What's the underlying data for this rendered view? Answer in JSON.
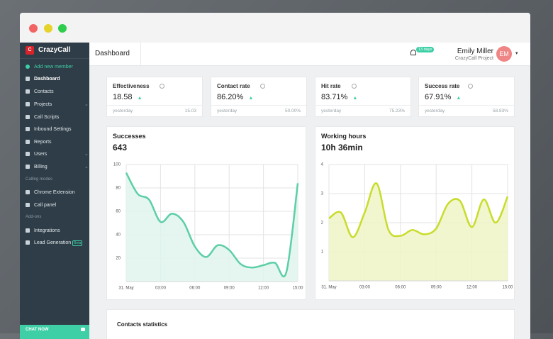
{
  "sidebar": {
    "logo_icon": "C",
    "brand": "CrazyCall",
    "add_member": "Add new member",
    "main": [
      "Dashboard",
      "Contacts",
      "Projects",
      "Call Scripts",
      "Inbound Settings",
      "Reports",
      "Users",
      "Billing"
    ],
    "calling_modes": {
      "heading": "Calling modes",
      "items": [
        "Chrome Extension",
        "Call panel"
      ]
    },
    "add_ons": {
      "heading": "Add-ons",
      "items": [
        "Integrations",
        "Lead Generation"
      ],
      "badge": "Beta"
    },
    "chat": "CHAT NOW"
  },
  "header": {
    "title": "Dashboard",
    "trial_badge": "13 days",
    "user_name": "Emily Miller",
    "project": "CrazyCall Project",
    "initials": "EM"
  },
  "kpis": [
    {
      "title": "Effectiveness",
      "value": "18.58",
      "compare_label": "yesterday",
      "compare_value": "15.03"
    },
    {
      "title": "Contact rate",
      "value": "86.20%",
      "compare_label": "yesterday",
      "compare_value": "50.00%"
    },
    {
      "title": "Hit rate",
      "value": "83.71%",
      "compare_label": "yesterday",
      "compare_value": "75.23%"
    },
    {
      "title": "Success rate",
      "value": "67.91%",
      "compare_label": "yesterday",
      "compare_value": "58.83%"
    }
  ],
  "chart_data": [
    {
      "type": "line",
      "title": "Successes",
      "subtitle": "643",
      "x": [
        0,
        1,
        2,
        3,
        4,
        5,
        6,
        7,
        8,
        9,
        10,
        11,
        12,
        13,
        14,
        15
      ],
      "values": [
        93,
        75,
        70,
        51,
        58,
        51,
        30,
        21,
        31,
        27,
        15,
        12,
        14,
        16,
        8,
        84
      ],
      "color": "#5ccfa6",
      "area_color": "#dff4ec",
      "xlim": [
        0,
        15
      ],
      "ylim": [
        0,
        100
      ],
      "xticks": [
        {
          "value": 0,
          "label": "31. May"
        },
        {
          "value": 3,
          "label": "03:00"
        },
        {
          "value": 6,
          "label": "06:00"
        },
        {
          "value": 9,
          "label": "09:00"
        },
        {
          "value": 12,
          "label": "12:00"
        },
        {
          "value": 15,
          "label": "15:00"
        }
      ],
      "yticks": [
        20,
        40,
        60,
        80,
        100
      ],
      "grid": true
    },
    {
      "type": "line",
      "title": "Working hours",
      "subtitle": "10h 36min",
      "x": [
        0,
        1,
        2,
        3,
        4,
        5,
        6,
        7,
        8,
        9,
        10,
        11,
        12,
        13,
        14,
        15
      ],
      "values": [
        2.15,
        2.35,
        1.5,
        2.35,
        3.35,
        1.75,
        1.55,
        1.75,
        1.6,
        1.8,
        2.65,
        2.75,
        1.85,
        2.8,
        2.0,
        2.9
      ],
      "color": "#c8dc2c",
      "area_color": "#eef5c6",
      "xlim": [
        0,
        15
      ],
      "ylim": [
        0,
        4
      ],
      "xticks": [
        {
          "value": 0,
          "label": "31. May"
        },
        {
          "value": 3,
          "label": "03:00"
        },
        {
          "value": 6,
          "label": "06:00"
        },
        {
          "value": 9,
          "label": "09:00"
        },
        {
          "value": 12,
          "label": "12:00"
        },
        {
          "value": 15,
          "label": "15:00"
        }
      ],
      "yticks": [
        1,
        2,
        3,
        4
      ],
      "grid": true
    }
  ],
  "contacts_statistics": {
    "title": "Contacts statistics"
  }
}
